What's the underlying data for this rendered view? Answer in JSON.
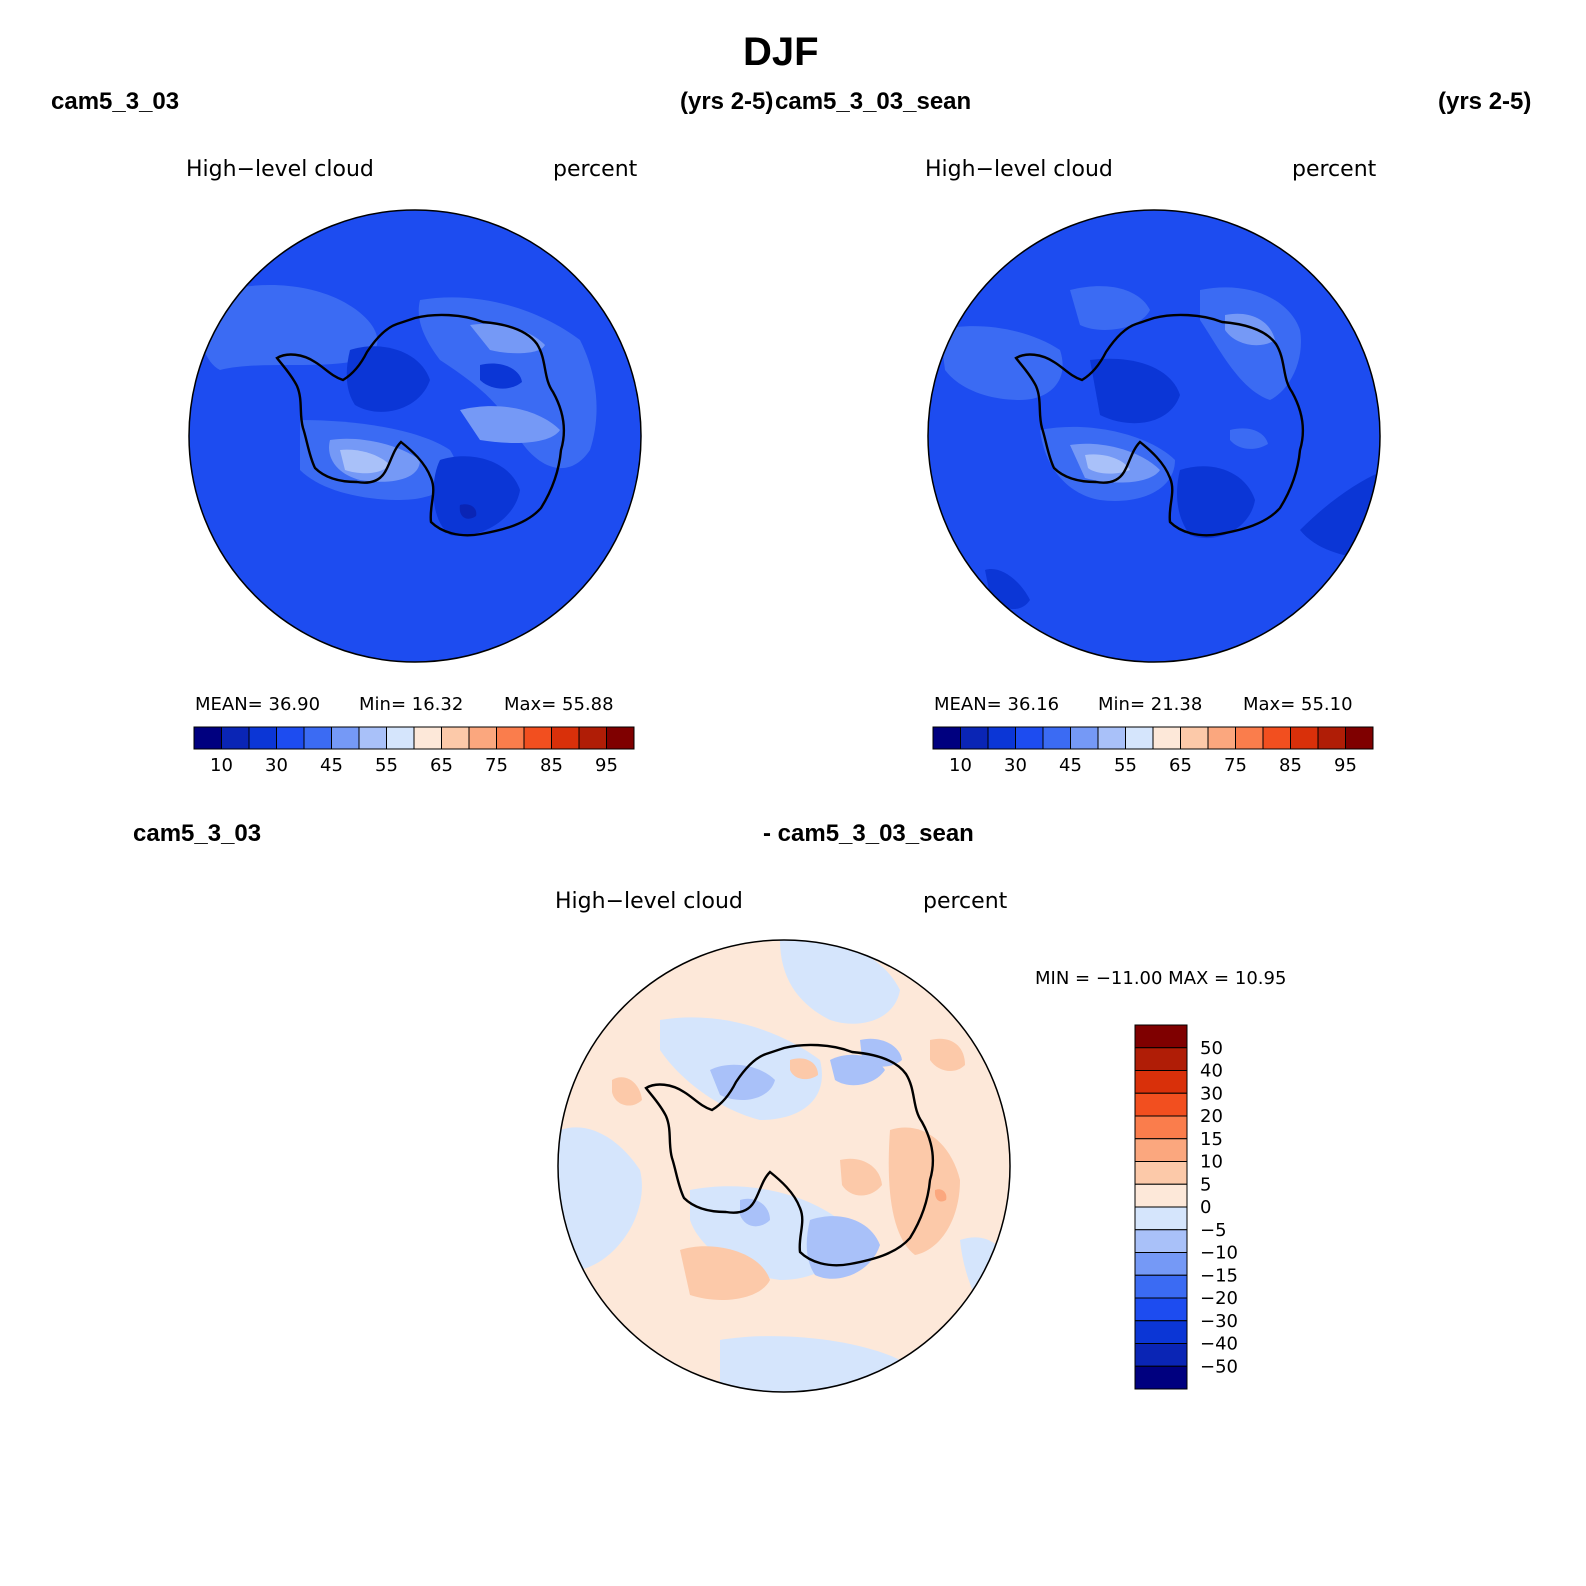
{
  "figure": {
    "season": "DJF"
  },
  "panels": [
    {
      "case_name": "cam5_3_03",
      "years": "(yrs 2-5)",
      "variable": "High−level cloud",
      "units": "percent",
      "mean_text": "MEAN=   36.90",
      "min_text": "Min=   16.32",
      "max_text": "Max=   55.88"
    },
    {
      "case_name": "cam5_3_03_sean",
      "years": "(yrs 2-5)",
      "variable": "High−level cloud",
      "units": "percent",
      "mean_text": "MEAN=   36.16",
      "min_text": "Min=   21.38",
      "max_text": "Max=   55.10"
    }
  ],
  "diff_panel": {
    "case_left": "cam5_3_03",
    "case_right": "- cam5_3_03_sean",
    "variable": "High−level cloud",
    "units": "percent",
    "minmax_text": "MIN = −11.00 MAX =   10.95"
  },
  "chart_data": [
    {
      "type": "heatmap",
      "title": "cam5_3_03",
      "subtitle": "High−level cloud",
      "units": "percent",
      "projection": "south polar stereographic",
      "stats": {
        "mean": 36.9,
        "min": 16.32,
        "max": 55.88
      },
      "colorbar": {
        "orientation": "horizontal",
        "levels": [
          5,
          10,
          20,
          30,
          40,
          45,
          50,
          55,
          60,
          65,
          70,
          75,
          80,
          85,
          90,
          95
        ],
        "tick_labels": [
          "10",
          "30",
          "45",
          "55",
          "65",
          "75",
          "85",
          "95"
        ],
        "colors": [
          "#00007f",
          "#0a25b5",
          "#0b36d6",
          "#1d4cf0",
          "#3b6bf3",
          "#7599f6",
          "#a9c1f9",
          "#d5e5fc",
          "#fde8d9",
          "#fcc9a9",
          "#fba77e",
          "#fa7d4c",
          "#f24f1f",
          "#d9300a",
          "#b01d06",
          "#7f0000"
        ]
      }
    },
    {
      "type": "heatmap",
      "title": "cam5_3_03_sean",
      "subtitle": "High−level cloud",
      "units": "percent",
      "projection": "south polar stereographic",
      "stats": {
        "mean": 36.16,
        "min": 21.38,
        "max": 55.1
      },
      "colorbar": {
        "orientation": "horizontal",
        "levels": [
          5,
          10,
          20,
          30,
          40,
          45,
          50,
          55,
          60,
          65,
          70,
          75,
          80,
          85,
          90,
          95
        ],
        "tick_labels": [
          "10",
          "30",
          "45",
          "55",
          "65",
          "75",
          "85",
          "95"
        ],
        "colors": [
          "#00007f",
          "#0a25b5",
          "#0b36d6",
          "#1d4cf0",
          "#3b6bf3",
          "#7599f6",
          "#a9c1f9",
          "#d5e5fc",
          "#fde8d9",
          "#fcc9a9",
          "#fba77e",
          "#fa7d4c",
          "#f24f1f",
          "#d9300a",
          "#b01d06",
          "#7f0000"
        ]
      }
    },
    {
      "type": "heatmap",
      "title": "cam5_3_03 - cam5_3_03_sean",
      "subtitle": "High−level cloud",
      "units": "percent",
      "projection": "south polar stereographic",
      "stats": {
        "min": -11.0,
        "max": 10.95
      },
      "colorbar": {
        "orientation": "vertical",
        "tick_labels": [
          "50",
          "40",
          "30",
          "20",
          "15",
          "10",
          "5",
          "0",
          "−5",
          "−10",
          "−15",
          "−20",
          "−30",
          "−40",
          "−50"
        ],
        "colors": [
          "#7f0000",
          "#b01d06",
          "#d9300a",
          "#f24f1f",
          "#fa7d4c",
          "#fba77e",
          "#fcc9a9",
          "#fde8d9",
          "#d5e5fc",
          "#a9c1f9",
          "#7599f6",
          "#3b6bf3",
          "#1d4cf0",
          "#0b36d6",
          "#0a25b5",
          "#00007f"
        ]
      }
    }
  ]
}
